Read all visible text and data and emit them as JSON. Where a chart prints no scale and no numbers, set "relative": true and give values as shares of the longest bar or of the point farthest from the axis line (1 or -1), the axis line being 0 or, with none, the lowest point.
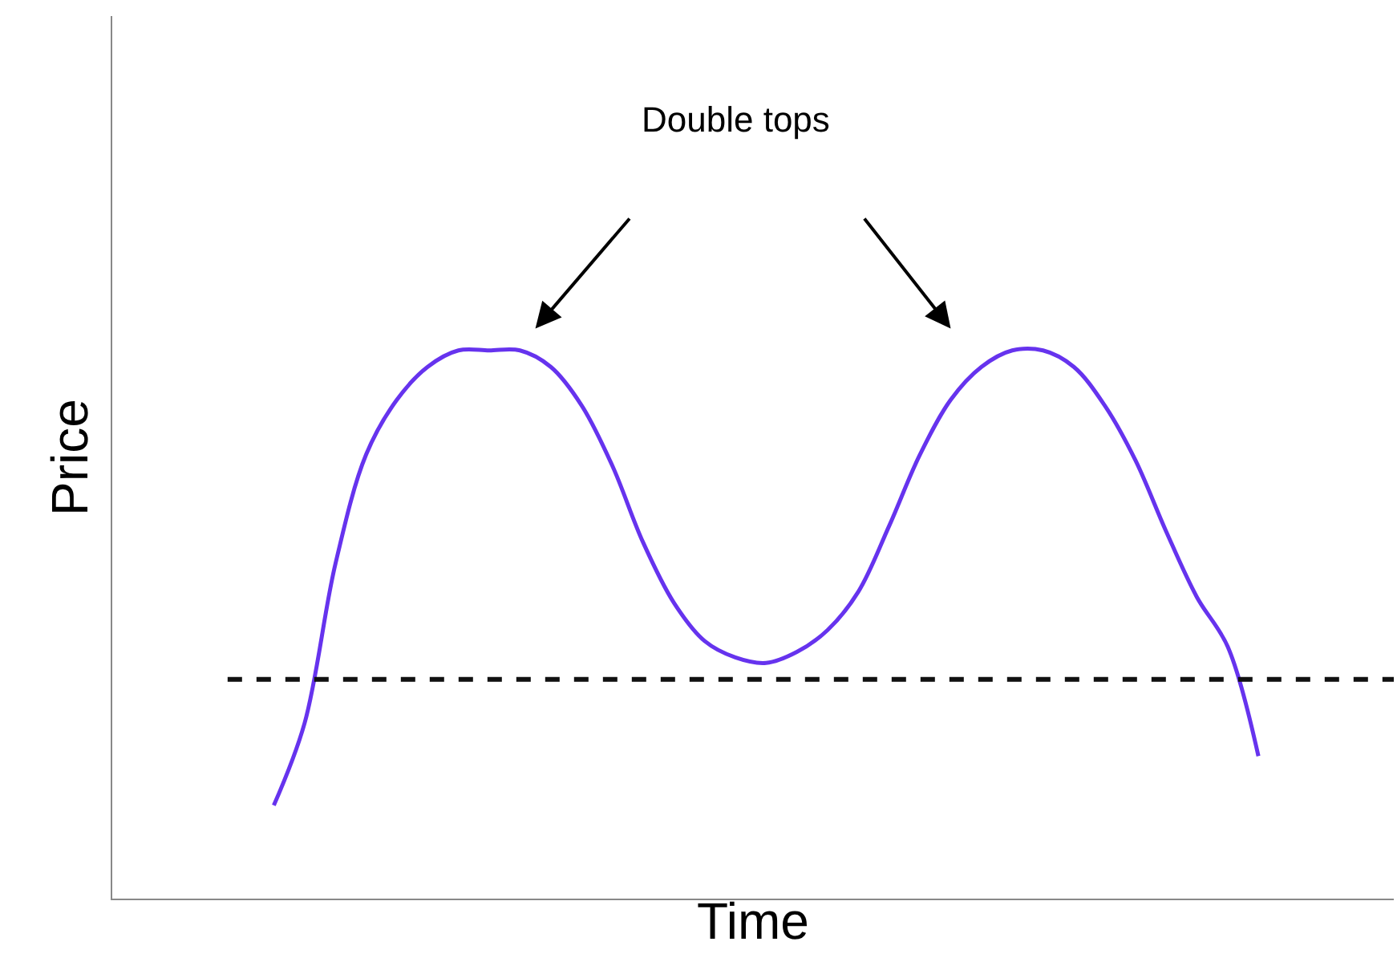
{
  "chart_data": {
    "type": "line",
    "relative": true,
    "xlabel": "Time",
    "ylabel": "Price",
    "categories": [
      null,
      null,
      null,
      null,
      null,
      null,
      null,
      null,
      null,
      null,
      null,
      null,
      null,
      null,
      null,
      null,
      null,
      null,
      null,
      null,
      null,
      null,
      null,
      null,
      null,
      null,
      null,
      null,
      null,
      null,
      null,
      null,
      null
    ],
    "series": [
      {
        "color": "#6633ee",
        "values": [
          0.17,
          0.32,
          0.61,
          0.81,
          0.91,
          0.97,
          1.0,
          1.0,
          1.0,
          0.97,
          0.9,
          0.79,
          0.65,
          0.54,
          0.47,
          0.44,
          0.43,
          0.45,
          0.49,
          0.56,
          0.68,
          0.81,
          0.91,
          0.97,
          1.0,
          1.0,
          0.97,
          0.9,
          0.8,
          0.67,
          0.55,
          0.46,
          0.26
        ]
      }
    ],
    "ref_lines": [
      {
        "axis": "y",
        "value": 0.4,
        "color": "#111111",
        "line_style": "dashed"
      }
    ],
    "annotations": [
      "Double tops"
    ],
    "line_style": "solid"
  }
}
